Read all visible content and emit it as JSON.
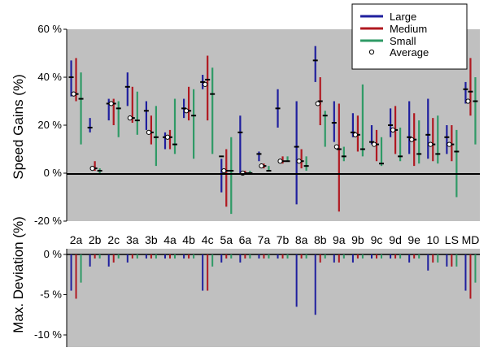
{
  "chart_data": [
    {
      "type": "range",
      "panel": "speed_gains",
      "ylabel": "Speed Gains (%)",
      "ylim": [
        -20,
        60
      ],
      "yticks": [
        "60 %",
        "40 %",
        "20 %",
        "0 %",
        "-20 %"
      ],
      "ytick_values": [
        60,
        40,
        20,
        0,
        -20
      ],
      "categories": [
        "2a",
        "2b",
        "2c",
        "3a",
        "3b",
        "4a",
        "4b",
        "4c",
        "5a",
        "6a",
        "7a",
        "7b",
        "8a",
        "8b",
        "9a",
        "9b",
        "9c",
        "9d",
        "9e",
        "10",
        "LS",
        "MD"
      ],
      "legend_position": "top-right",
      "series": [
        {
          "name": "Large",
          "color": "#1f1f9e",
          "ranges": [
            [
              32,
              47
            ],
            [
              17,
              23
            ],
            [
              22,
              31
            ],
            [
              28,
              42
            ],
            [
              18,
              30
            ],
            [
              10,
              17
            ],
            [
              23,
              31
            ],
            [
              35,
              41
            ],
            [
              -8,
              6
            ],
            [
              0,
              24
            ],
            [
              5,
              9
            ],
            [
              19,
              35
            ],
            [
              -13,
              30
            ],
            [
              38,
              53
            ],
            [
              13,
              30
            ],
            [
              15,
              25
            ],
            [
              12,
              20
            ],
            [
              15,
              27
            ],
            [
              8,
              30
            ],
            [
              6,
              31
            ],
            [
              8,
              20
            ],
            [
              29,
              38
            ]
          ],
          "avg": [
            40,
            19,
            29,
            36,
            26,
            15,
            27,
            38,
            7,
            17,
            8,
            27,
            11,
            47,
            21,
            17,
            13,
            20,
            15,
            16,
            15,
            35
          ]
        },
        {
          "name": "Medium",
          "color": "#b01820",
          "ranges": [
            [
              30,
              48
            ],
            [
              1,
              5
            ],
            [
              20,
              31
            ],
            [
              21,
              36
            ],
            [
              12,
              24
            ],
            [
              10,
              18
            ],
            [
              22,
              36
            ],
            [
              22,
              49
            ],
            [
              -14,
              10
            ],
            [
              0,
              1
            ],
            [
              2,
              4
            ],
            [
              4,
              7
            ],
            [
              2,
              10
            ],
            [
              20,
              40
            ],
            [
              -16,
              29
            ],
            [
              9,
              24
            ],
            [
              5,
              18
            ],
            [
              8,
              28
            ],
            [
              3,
              25
            ],
            [
              5,
              23
            ],
            [
              5,
              20
            ],
            [
              24,
              48
            ]
          ],
          "avg": [
            33,
            2,
            29,
            23,
            17,
            15,
            26,
            39,
            1,
            0,
            3,
            5,
            5,
            30,
            10,
            16,
            12,
            18,
            14,
            12,
            12,
            34
          ]
        },
        {
          "name": "Small",
          "color": "#2f9a66",
          "ranges": [
            [
              12,
              42
            ],
            [
              0,
              2
            ],
            [
              15,
              30
            ],
            [
              16,
              34
            ],
            [
              3,
              28
            ],
            [
              8,
              31
            ],
            [
              6,
              35
            ],
            [
              8,
              44
            ],
            [
              -17,
              15
            ],
            [
              0,
              1
            ],
            [
              1,
              3
            ],
            [
              5,
              7
            ],
            [
              1,
              7
            ],
            [
              11,
              26
            ],
            [
              5,
              11
            ],
            [
              7,
              37
            ],
            [
              3,
              15
            ],
            [
              5,
              19
            ],
            [
              4,
              22
            ],
            [
              4,
              24
            ],
            [
              -10,
              18
            ],
            [
              12,
              40
            ]
          ],
          "avg": [
            31,
            1,
            27,
            22,
            15,
            12,
            24,
            33,
            1,
            0,
            1,
            5,
            3,
            24,
            7,
            10,
            4,
            7,
            8,
            8,
            9,
            30
          ]
        },
        {
          "name": "Average",
          "marker": "circle",
          "values": [
            33,
            2,
            29,
            23,
            17,
            15,
            26,
            37,
            1,
            0,
            3,
            5,
            5,
            29,
            11,
            16,
            12,
            18,
            14,
            12,
            12,
            30
          ]
        }
      ]
    },
    {
      "type": "bar",
      "panel": "max_deviation",
      "ylabel": "Max. Deviation (%)",
      "ylim": [
        -10,
        0
      ],
      "yticks": [
        "0 %",
        "-5 %",
        "-10 %"
      ],
      "ytick_values": [
        0,
        -5,
        -10
      ],
      "categories": [
        "2a",
        "2b",
        "2c",
        "3a",
        "3b",
        "4a",
        "4b",
        "4c",
        "5a",
        "6a",
        "7a",
        "7b",
        "8a",
        "8b",
        "9a",
        "9b",
        "9c",
        "9d",
        "9e",
        "10",
        "LS",
        "MD"
      ],
      "series": [
        {
          "name": "Large",
          "color": "#1f1f9e",
          "values": [
            -4.5,
            -1.5,
            -1.5,
            -1,
            -0.5,
            -0.5,
            -0.5,
            -4.5,
            -1,
            -1,
            -0.5,
            -0.5,
            -6.5,
            -7.5,
            -1,
            -1,
            -0.5,
            -0.5,
            -1,
            -2,
            -1.5,
            -4.5
          ]
        },
        {
          "name": "Medium",
          "color": "#b01820",
          "values": [
            -5.5,
            -0.5,
            -1,
            -0.5,
            -0.5,
            -0.5,
            -0.5,
            -4.5,
            -0.5,
            -0.5,
            -0.5,
            -0.5,
            -0.5,
            -1,
            -1,
            -0.5,
            -0.5,
            -0.5,
            -0.5,
            -1,
            -1.5,
            -5.5
          ]
        },
        {
          "name": "Small",
          "color": "#2f9a66",
          "values": [
            -3.5,
            -0.5,
            -0.5,
            -0.5,
            -0.5,
            -0.5,
            -0.5,
            -1.5,
            -0.5,
            -0.5,
            -0.5,
            -0.5,
            -0.5,
            -0.5,
            -0.5,
            -0.5,
            -0.5,
            -0.5,
            -0.5,
            -1,
            -1.5,
            -3.5
          ]
        }
      ]
    }
  ]
}
